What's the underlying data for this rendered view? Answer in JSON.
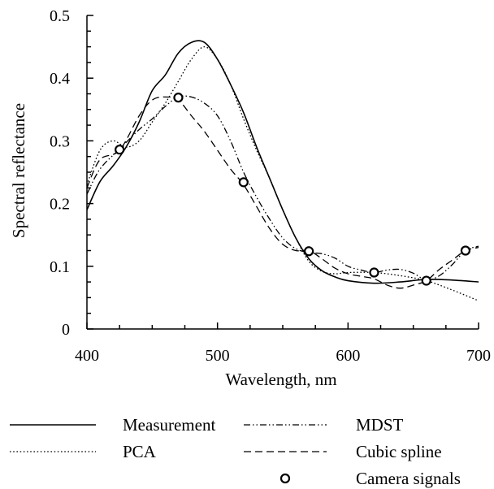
{
  "chart_data": {
    "type": "line",
    "xlabel": "Wavelength, nm",
    "ylabel": "Spectral reflectance",
    "xlim": [
      400,
      700
    ],
    "ylim": [
      0,
      0.5
    ],
    "xticks": [
      400,
      500,
      600,
      700
    ],
    "xtick_labels": [
      "400",
      "500",
      "600",
      "700"
    ],
    "yticks": [
      0,
      0.1,
      0.2,
      0.3,
      0.4,
      0.5
    ],
    "ytick_labels": [
      "0",
      "0.1",
      "0.2",
      "0.3",
      "0.4",
      "0.5"
    ],
    "grid": false,
    "legend_position": "below",
    "series": [
      {
        "name": "Measurement",
        "style": "solid",
        "x": [
          400,
          410,
          420,
          430,
          440,
          450,
          460,
          470,
          480,
          490,
          500,
          510,
          520,
          530,
          540,
          550,
          560,
          570,
          580,
          590,
          600,
          620,
          640,
          660,
          680,
          700
        ],
        "y": [
          0.19,
          0.235,
          0.26,
          0.29,
          0.33,
          0.38,
          0.405,
          0.44,
          0.457,
          0.457,
          0.43,
          0.39,
          0.345,
          0.29,
          0.24,
          0.19,
          0.145,
          0.112,
          0.093,
          0.083,
          0.077,
          0.073,
          0.075,
          0.079,
          0.078,
          0.075
        ]
      },
      {
        "name": "MDST",
        "style": "dash-dot-dot",
        "x": [
          400,
          410,
          425,
          440,
          450,
          460,
          470,
          480,
          490,
          500,
          510,
          520,
          530,
          540,
          550,
          560,
          570,
          580,
          590,
          600,
          610,
          620,
          630,
          640,
          650,
          660,
          670,
          680,
          690,
          700
        ],
        "y": [
          0.215,
          0.255,
          0.287,
          0.318,
          0.335,
          0.355,
          0.37,
          0.37,
          0.36,
          0.34,
          0.3,
          0.25,
          0.21,
          0.175,
          0.145,
          0.128,
          0.122,
          0.12,
          0.113,
          0.1,
          0.094,
          0.09,
          0.094,
          0.095,
          0.089,
          0.078,
          0.085,
          0.103,
          0.125,
          0.132
        ]
      },
      {
        "name": "PCA",
        "style": "dotted",
        "x": [
          400,
          410,
          420,
          430,
          440,
          450,
          460,
          470,
          480,
          490,
          500,
          510,
          520,
          530,
          540,
          550,
          560,
          570,
          580,
          590,
          600,
          620,
          640,
          660,
          680,
          700
        ],
        "y": [
          0.23,
          0.285,
          0.3,
          0.29,
          0.3,
          0.33,
          0.36,
          0.395,
          0.43,
          0.45,
          0.43,
          0.39,
          0.335,
          0.285,
          0.24,
          0.19,
          0.145,
          0.108,
          0.092,
          0.088,
          0.09,
          0.09,
          0.085,
          0.077,
          0.062,
          0.045
        ]
      },
      {
        "name": "Cubic spline",
        "style": "dashed",
        "x": [
          400,
          410,
          425,
          440,
          450,
          460,
          470,
          480,
          490,
          500,
          510,
          520,
          530,
          540,
          550,
          560,
          570,
          580,
          590,
          600,
          610,
          620,
          630,
          640,
          650,
          660,
          670,
          680,
          690,
          700
        ],
        "y": [
          0.225,
          0.27,
          0.285,
          0.34,
          0.365,
          0.37,
          0.365,
          0.34,
          0.315,
          0.285,
          0.255,
          0.23,
          0.195,
          0.16,
          0.135,
          0.125,
          0.125,
          0.112,
          0.097,
          0.088,
          0.084,
          0.08,
          0.07,
          0.065,
          0.07,
          0.077,
          0.095,
          0.11,
          0.125,
          0.13
        ]
      }
    ],
    "markers": {
      "name": "Camera signals",
      "symbol": "open-circle",
      "x": [
        425,
        470,
        520,
        570,
        620,
        660,
        690
      ],
      "y": [
        0.286,
        0.369,
        0.234,
        0.124,
        0.09,
        0.077,
        0.125
      ]
    },
    "legend": {
      "rows": [
        [
          {
            "label": "Measurement",
            "style": "solid"
          },
          {
            "label": "MDST",
            "style": "dash-dot-dot"
          }
        ],
        [
          {
            "label": "PCA",
            "style": "dotted"
          },
          {
            "label": "Cubic spline",
            "style": "dashed"
          }
        ],
        [
          {
            "label": "",
            "style": "none"
          },
          {
            "label": "Camera signals",
            "style": "open-circle"
          }
        ]
      ]
    }
  }
}
